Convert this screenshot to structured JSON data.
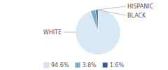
{
  "chart_data": {
    "type": "pie",
    "categories": [
      "WHITE",
      "HISPANIC",
      "BLACK"
    ],
    "values": [
      94.6,
      3.8,
      1.6
    ],
    "value_labels": [
      "94.6%",
      "3.8%",
      "1.6%"
    ],
    "colors": [
      "#d9e8f5",
      "#7aafc9",
      "#2d5f8a"
    ],
    "legend": "bottom"
  }
}
